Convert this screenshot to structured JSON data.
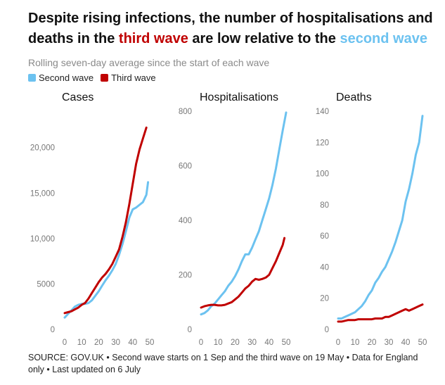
{
  "title": {
    "part1": "Despite rising infections, the number of hospitalisations and deaths in the ",
    "highlight_third": "third wave",
    "part2": " are low relative to the ",
    "highlight_second": "second wave"
  },
  "subtitle": "Rolling seven-day average since the start of each wave",
  "legend": [
    {
      "label": "Second wave",
      "color": "#6cc2f0"
    },
    {
      "label": "Third wave",
      "color": "#c00000"
    }
  ],
  "source": "SOURCE: GOV.UK • Second wave starts on 1 Sep and the third wave on 19 May • Data for England only • Last updated on 6 July",
  "chart_data": [
    {
      "type": "line",
      "title": "Cases",
      "xlim": [
        0,
        50
      ],
      "ylim": [
        0,
        24000
      ],
      "xticks": [
        0,
        10,
        20,
        30,
        40,
        50
      ],
      "xtick_labels": [
        "0",
        "10",
        "20",
        "30",
        "40",
        "50"
      ],
      "yticks": [
        0,
        5000,
        10000,
        15000,
        20000
      ],
      "ytick_labels": [
        "0",
        "5000",
        "10,000",
        "15,000",
        "20,000"
      ],
      "grid": false,
      "series": [
        {
          "name": "Second wave",
          "color": "#6cc2f0",
          "x": [
            0,
            2,
            4,
            6,
            8,
            10,
            12,
            14,
            16,
            18,
            20,
            22,
            24,
            26,
            28,
            30,
            32,
            34,
            36,
            38,
            40,
            42,
            44,
            46,
            48,
            49
          ],
          "y": [
            1300,
            1700,
            2100,
            2500,
            2700,
            2800,
            2800,
            2900,
            3200,
            3700,
            4200,
            4800,
            5400,
            5900,
            6500,
            7200,
            8200,
            9400,
            10800,
            12300,
            13200,
            13400,
            13700,
            14000,
            14800,
            16200
          ]
        },
        {
          "name": "Third wave",
          "color": "#c00000",
          "x": [
            0,
            2,
            4,
            6,
            8,
            10,
            12,
            14,
            16,
            18,
            20,
            22,
            24,
            26,
            28,
            30,
            32,
            34,
            36,
            38,
            40,
            42,
            44,
            46,
            48
          ],
          "y": [
            1800,
            1900,
            2000,
            2200,
            2400,
            2700,
            2900,
            3400,
            4000,
            4600,
            5200,
            5700,
            6100,
            6600,
            7200,
            8000,
            8800,
            10200,
            11800,
            13800,
            16000,
            18200,
            19800,
            21000,
            22200
          ]
        }
      ]
    },
    {
      "type": "line",
      "title": "Hospitalisations",
      "xlim": [
        0,
        50
      ],
      "ylim": [
        0,
        800
      ],
      "xticks": [
        0,
        10,
        20,
        30,
        40,
        50
      ],
      "xtick_labels": [
        "0",
        "10",
        "20",
        "30",
        "40",
        "50"
      ],
      "yticks": [
        0,
        200,
        400,
        600,
        800
      ],
      "ytick_labels": [
        "0",
        "200",
        "400",
        "600",
        "800"
      ],
      "grid": false,
      "series": [
        {
          "name": "Second wave",
          "color": "#6cc2f0",
          "x": [
            0,
            2,
            4,
            6,
            8,
            10,
            12,
            14,
            16,
            18,
            20,
            22,
            24,
            26,
            28,
            30,
            32,
            34,
            36,
            38,
            40,
            42,
            44,
            46,
            48,
            50
          ],
          "y": [
            55,
            60,
            70,
            85,
            95,
            110,
            125,
            140,
            160,
            175,
            195,
            220,
            250,
            275,
            275,
            300,
            330,
            360,
            400,
            440,
            480,
            530,
            590,
            660,
            730,
            795
          ]
        },
        {
          "name": "Third wave",
          "color": "#c00000",
          "x": [
            0,
            2,
            4,
            6,
            8,
            10,
            12,
            14,
            16,
            18,
            20,
            22,
            24,
            26,
            28,
            30,
            32,
            34,
            36,
            38,
            40,
            42,
            44,
            46,
            48,
            49
          ],
          "y": [
            80,
            85,
            88,
            90,
            90,
            88,
            88,
            90,
            95,
            100,
            110,
            120,
            135,
            150,
            160,
            175,
            185,
            182,
            185,
            190,
            200,
            225,
            250,
            280,
            310,
            335
          ]
        }
      ]
    },
    {
      "type": "line",
      "title": "Deaths",
      "xlim": [
        0,
        50
      ],
      "ylim": [
        0,
        140
      ],
      "xticks": [
        0,
        10,
        20,
        30,
        40,
        50
      ],
      "xtick_labels": [
        "0",
        "10",
        "20",
        "30",
        "40",
        "50"
      ],
      "yticks": [
        0,
        20,
        40,
        60,
        80,
        100,
        120,
        140
      ],
      "ytick_labels": [
        "0",
        "20",
        "40",
        "60",
        "80",
        "100",
        "120",
        "140"
      ],
      "grid": false,
      "series": [
        {
          "name": "Second wave",
          "color": "#6cc2f0",
          "x": [
            0,
            2,
            4,
            6,
            8,
            10,
            12,
            14,
            16,
            18,
            20,
            22,
            24,
            26,
            28,
            30,
            32,
            34,
            36,
            38,
            40,
            42,
            44,
            46,
            48,
            50
          ],
          "y": [
            7,
            7,
            8,
            9,
            10,
            11,
            13,
            15,
            18,
            22,
            25,
            30,
            33,
            37,
            40,
            45,
            50,
            56,
            63,
            70,
            82,
            90,
            100,
            112,
            120,
            137
          ]
        },
        {
          "name": "Third wave",
          "color": "#c00000",
          "x": [
            0,
            2,
            4,
            6,
            8,
            10,
            12,
            14,
            16,
            18,
            20,
            22,
            24,
            26,
            28,
            30,
            32,
            34,
            36,
            38,
            40,
            42,
            44,
            46,
            48,
            50
          ],
          "y": [
            5,
            5,
            5.5,
            6,
            6,
            6,
            6.5,
            6.5,
            6.5,
            6.5,
            6.5,
            7,
            7,
            7,
            8,
            8,
            9,
            10,
            11,
            12,
            13,
            12,
            13,
            14,
            15,
            16
          ]
        }
      ]
    }
  ]
}
